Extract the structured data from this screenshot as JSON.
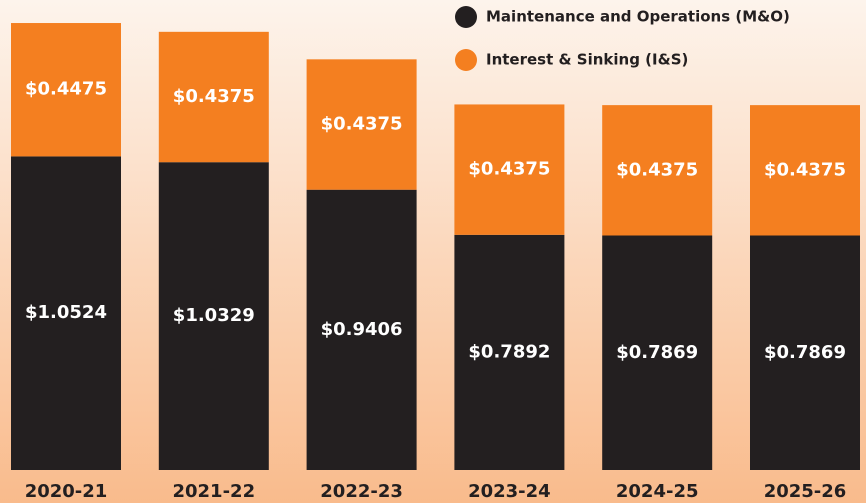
{
  "chart_data": {
    "type": "stacked_bar",
    "categories": [
      "2020-21",
      "2021-22",
      "2022-23",
      "2023-24",
      "2024-25",
      "2025-26"
    ],
    "series": [
      {
        "name": "Maintenance and Operations (M&O)",
        "color": "#231f20",
        "values": [
          1.0524,
          1.0329,
          0.9406,
          0.7892,
          0.7869,
          0.7869
        ],
        "value_labels": [
          "$1.0524",
          "$1.0329",
          "$0.9406",
          "$0.7892",
          "$0.7869",
          "$0.7869"
        ]
      },
      {
        "name": "Interest & Sinking (I&S)",
        "color": "#f47f20",
        "values": [
          0.4475,
          0.4375,
          0.4375,
          0.4375,
          0.4375,
          0.4375
        ],
        "value_labels": [
          "$0.4475",
          "$0.4375",
          "$0.4375",
          "$0.4375",
          "$0.4375",
          "$0.4375"
        ]
      }
    ],
    "ylim": [
      0,
      1.5
    ],
    "legend": "top-right"
  }
}
